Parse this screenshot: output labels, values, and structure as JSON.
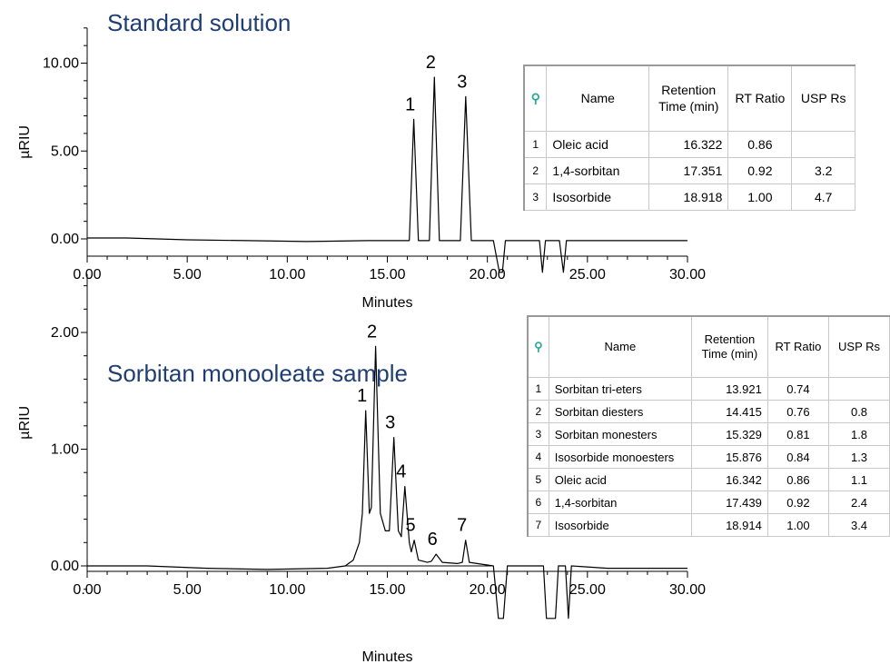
{
  "chart_data": [
    {
      "type": "line",
      "title": "Standard solution",
      "xlabel": "Minutes",
      "ylabel": "µRIU",
      "xlim": [
        0,
        30
      ],
      "ylim": [
        0,
        12
      ],
      "x_ticks": [
        "0.00",
        "5.00",
        "10.00",
        "15.00",
        "20.00",
        "25.00",
        "30.00"
      ],
      "y_ticks": [
        "0.00",
        "5.00",
        "10.00"
      ],
      "series": [
        {
          "x": [
            0,
            2,
            5,
            8,
            11,
            14,
            15.5,
            16.1,
            16.322,
            16.55,
            17.1,
            17.351,
            17.6,
            18.65,
            18.918,
            19.2,
            20.3,
            20.6,
            20.75,
            20.9,
            22.6,
            22.75,
            22.9,
            23.6,
            23.8,
            23.95,
            25,
            30
          ],
          "y": [
            0.05,
            0.05,
            -0.05,
            -0.1,
            -0.15,
            -0.1,
            -0.1,
            -0.1,
            6.8,
            -0.1,
            -0.1,
            9.2,
            -0.1,
            -0.1,
            8.1,
            -0.1,
            -0.1,
            -1.9,
            -1.9,
            -0.1,
            -0.1,
            -1.9,
            -0.1,
            -0.1,
            -1.9,
            -0.1,
            -0.1,
            -0.1
          ]
        }
      ],
      "peaks": [
        {
          "label": "1",
          "x": 16.322,
          "y": 6.8
        },
        {
          "label": "2",
          "x": 17.351,
          "y": 9.2
        },
        {
          "label": "3",
          "x": 18.918,
          "y": 8.1
        }
      ],
      "grid": false,
      "table": {
        "icon": "peak-table-icon",
        "headers": [
          "Name",
          "Retention Time (min)",
          "RT Ratio",
          "USP Rs"
        ],
        "rows": [
          {
            "n": "1",
            "name": "Oleic acid",
            "rt": "16.322",
            "ratio": "0.86",
            "rs": ""
          },
          {
            "n": "2",
            "name": "1,4-sorbitan",
            "rt": "17.351",
            "ratio": "0.92",
            "rs": "3.2"
          },
          {
            "n": "3",
            "name": "Isosorbide",
            "rt": "18.918",
            "ratio": "1.00",
            "rs": "4.7"
          }
        ]
      }
    },
    {
      "type": "line",
      "title": "Sorbitan monooleate sample",
      "xlabel": "Minutes",
      "ylabel": "µRIU",
      "xlim": [
        0,
        30
      ],
      "ylim": [
        -0.3,
        2.5
      ],
      "x_ticks": [
        "0.00",
        "5.00",
        "10.00",
        "15.00",
        "20.00",
        "25.00",
        "30.00"
      ],
      "y_ticks": [
        "0.00",
        "1.00",
        "2.00"
      ],
      "series": [
        {
          "x": [
            0,
            3,
            6,
            9,
            12,
            12.9,
            13.3,
            13.6,
            13.75,
            13.921,
            14.1,
            14.2,
            14.415,
            14.65,
            14.9,
            15.1,
            15.329,
            15.55,
            15.7,
            15.876,
            16.1,
            16.2,
            16.342,
            16.55,
            17,
            17.2,
            17.439,
            17.75,
            18.5,
            18.75,
            18.914,
            19.1,
            20.3,
            20.55,
            20.8,
            21,
            22.8,
            22.95,
            23.4,
            23.55,
            23.9,
            24.05,
            24.2,
            26,
            30
          ],
          "y": [
            0,
            0,
            -0.02,
            -0.03,
            -0.02,
            0,
            0.05,
            0.2,
            0.45,
            1.33,
            0.45,
            0.5,
            1.88,
            0.45,
            0.3,
            0.3,
            1.1,
            0.3,
            0.25,
            0.68,
            0.2,
            0.12,
            0.22,
            0.05,
            0.03,
            0.04,
            0.1,
            0.03,
            0.02,
            0.03,
            0.22,
            0.03,
            0,
            -0.45,
            -0.45,
            0,
            0,
            -0.45,
            -0.45,
            0,
            0,
            -0.45,
            0,
            -0.02,
            -0.02
          ]
        }
      ],
      "peaks": [
        {
          "label": "1",
          "x": 13.921,
          "y": 1.33
        },
        {
          "label": "2",
          "x": 14.415,
          "y": 1.88
        },
        {
          "label": "3",
          "x": 15.329,
          "y": 1.1
        },
        {
          "label": "4",
          "x": 15.876,
          "y": 0.68
        },
        {
          "label": "5",
          "x": 16.342,
          "y": 0.22
        },
        {
          "label": "6",
          "x": 17.439,
          "y": 0.1
        },
        {
          "label": "7",
          "x": 18.914,
          "y": 0.22
        }
      ],
      "grid": false,
      "table": {
        "icon": "peak-table-icon",
        "headers": [
          "Name",
          "Retention Time (min)",
          "RT Ratio",
          "USP Rs"
        ],
        "rows": [
          {
            "n": "1",
            "name": "Sorbitan tri-eters",
            "rt": "13.921",
            "ratio": "0.74",
            "rs": ""
          },
          {
            "n": "2",
            "name": "Sorbitan diesters",
            "rt": "14.415",
            "ratio": "0.76",
            "rs": "0.8"
          },
          {
            "n": "3",
            "name": "Sorbitan monesters",
            "rt": "15.329",
            "ratio": "0.81",
            "rs": "1.8"
          },
          {
            "n": "4",
            "name": "Isosorbide monoesters",
            "rt": "15.876",
            "ratio": "0.84",
            "rs": "1.3"
          },
          {
            "n": "5",
            "name": "Oleic acid",
            "rt": "16.342",
            "ratio": "0.86",
            "rs": "1.1"
          },
          {
            "n": "6",
            "name": "1,4-sorbitan",
            "rt": "17.439",
            "ratio": "0.92",
            "rs": "2.4"
          },
          {
            "n": "7",
            "name": "Isosorbide",
            "rt": "18.914",
            "ratio": "1.00",
            "rs": "3.4"
          }
        ]
      }
    }
  ]
}
